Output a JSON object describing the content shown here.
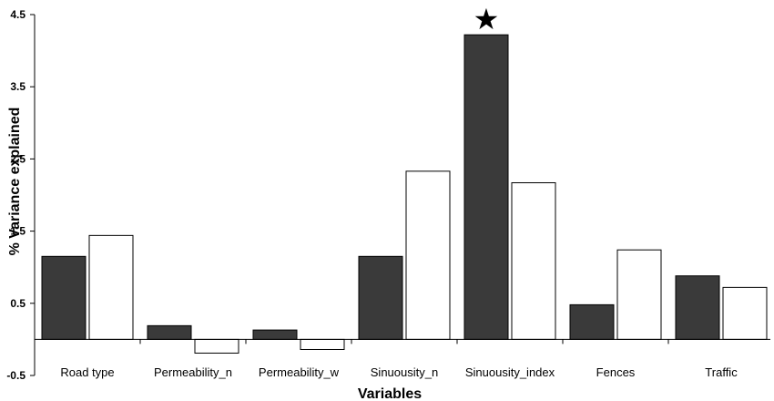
{
  "chart_data": {
    "type": "bar",
    "title": "",
    "xlabel": "Variables",
    "ylabel": "% Variance explained",
    "ylim": [
      -0.5,
      4.5
    ],
    "yticks": [
      -0.5,
      0.5,
      1.5,
      2.5,
      3.5,
      4.5
    ],
    "ytick_labels": [
      "-0.5",
      "0.5",
      "1.5",
      "2.5",
      "3.5",
      "4.5"
    ],
    "grid": false,
    "legend": "none",
    "categories": [
      "Road type",
      "Permeability_n",
      "Permeability_w",
      "Sinuousity_n",
      "Sinuousity_index",
      "Fences",
      "Traffic"
    ],
    "series": [
      {
        "values": [
          1.15,
          0.19,
          0.13,
          1.15,
          4.22,
          0.48,
          0.88
        ],
        "color": "#3a3a3a"
      },
      {
        "values": [
          1.44,
          -0.19,
          -0.14,
          2.33,
          2.17,
          1.24,
          0.72
        ],
        "color": "#ffffff"
      }
    ],
    "annotations": [
      {
        "category": "Sinuousity_index",
        "series": 0,
        "symbol": "★",
        "meaning": "significant"
      }
    ]
  }
}
